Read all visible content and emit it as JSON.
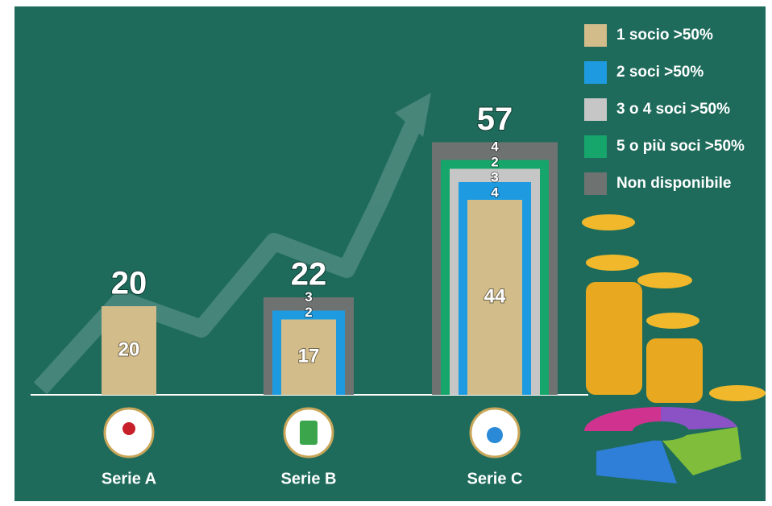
{
  "chart_data": {
    "type": "bar",
    "categories": [
      "Serie A",
      "Serie B",
      "Serie C"
    ],
    "totals": [
      20,
      22,
      57
    ],
    "series": [
      {
        "name": "1 socio >50%",
        "color": "#d2bc8a",
        "values": [
          20,
          17,
          44
        ]
      },
      {
        "name": "2 soci >50%",
        "color": "#1e9be0",
        "values": [
          null,
          2,
          4
        ]
      },
      {
        "name": "3 o 4 soci >50%",
        "color": "#c6c6c6",
        "values": [
          null,
          null,
          3
        ]
      },
      {
        "name": "5 o più soci >50%",
        "color": "#16a56a",
        "values": [
          null,
          null,
          2
        ]
      },
      {
        "name": "Non disponibile",
        "color": "#6e7372",
        "values": [
          null,
          3,
          4
        ]
      }
    ]
  }
}
